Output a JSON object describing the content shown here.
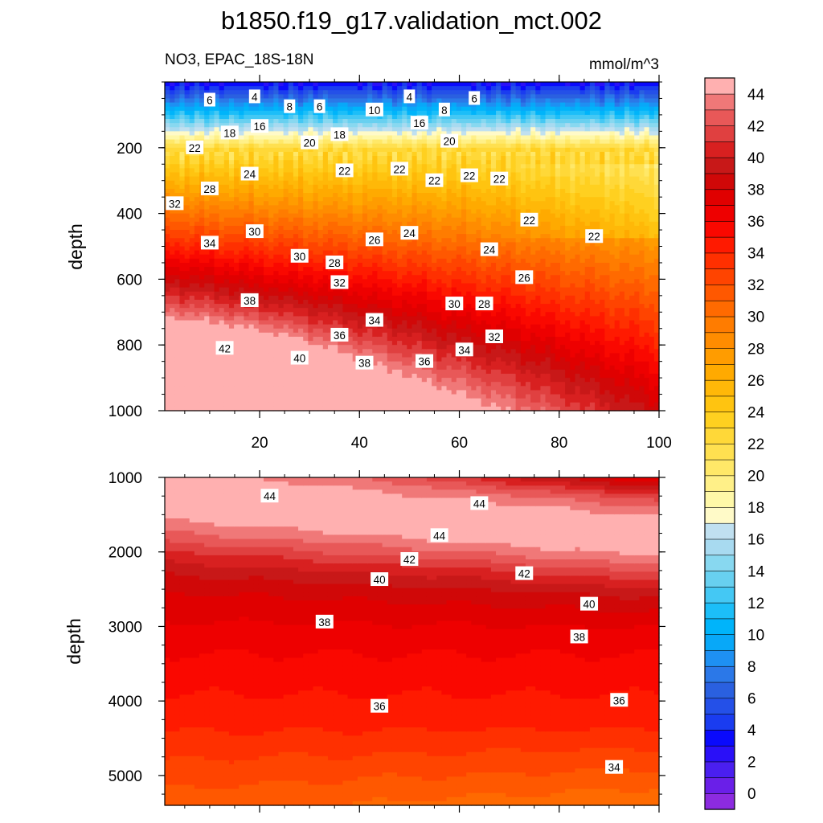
{
  "chart_data": {
    "title": "b1850.f19_g17.validation_mct.002",
    "variable_label": "NO3, EPAC_18S-18N",
    "units": "mmol/m^3",
    "type": "heatmap",
    "colorbar": {
      "levels": [
        0,
        2,
        4,
        6,
        8,
        10,
        12,
        14,
        16,
        18,
        20,
        22,
        24,
        26,
        28,
        30,
        32,
        34,
        36,
        38,
        40,
        42,
        44
      ],
      "tick_labels": [
        "0",
        "2",
        "4",
        "6",
        "8",
        "10",
        "12",
        "14",
        "16",
        "18",
        "20",
        "22",
        "24",
        "26",
        "28",
        "30",
        "32",
        "34",
        "36",
        "38",
        "40",
        "42",
        "44"
      ],
      "colors": [
        "#8c2be0",
        "#6a1fe8",
        "#4a1ff0",
        "#2a10f8",
        "#0a0afc",
        "#1a3cf0",
        "#2450e8",
        "#2a60e0",
        "#2b78e8",
        "#1e90f2",
        "#08a8f8",
        "#00b4fa",
        "#1cbef8",
        "#44c8f4",
        "#68d0f0",
        "#88d8f0",
        "#a8daf0",
        "#c0e0f0",
        "#fffac8",
        "#fff8a8",
        "#fff088",
        "#ffe868",
        "#ffe050",
        "#ffd838",
        "#ffd020",
        "#ffc410",
        "#ffb808",
        "#ffaa00",
        "#ff9c00",
        "#ff8c00",
        "#ff7c00",
        "#ff6a00",
        "#ff5800",
        "#ff4400",
        "#ff3000",
        "#ff1a00",
        "#fa0800",
        "#ee0000",
        "#e00000",
        "#d00808",
        "#c81818",
        "#d82020",
        "#e04040",
        "#e85858",
        "#f07878",
        "#ffb0b0"
      ],
      "fill_tops": [
        0,
        1,
        2,
        3,
        4,
        5,
        6,
        7,
        8,
        9,
        10,
        11,
        12,
        13,
        14,
        15,
        16,
        17,
        18,
        19,
        20,
        21,
        22,
        23,
        24,
        25,
        26,
        27,
        28,
        29,
        30,
        31,
        32,
        33,
        34,
        35,
        36,
        37,
        38,
        39,
        40,
        41,
        42,
        43,
        44,
        46
      ]
    },
    "panels": [
      {
        "name": "upper",
        "xlim": [
          1,
          100
        ],
        "ylim": [
          1000,
          0
        ],
        "ylabel": "depth",
        "xticks": [
          20,
          40,
          60,
          80,
          100
        ],
        "xtick_labels": [
          "20",
          "40",
          "60",
          "80",
          "100"
        ],
        "yticks": [
          200,
          400,
          600,
          800,
          1000
        ],
        "ytick_labels": [
          "200",
          "400",
          "600",
          "800",
          "1000"
        ],
        "contour_labels": [
          {
            "text": "6",
            "x": 10,
            "y": 55
          },
          {
            "text": "4",
            "x": 19,
            "y": 45
          },
          {
            "text": "8",
            "x": 26,
            "y": 75
          },
          {
            "text": "6",
            "x": 32,
            "y": 75
          },
          {
            "text": "10",
            "x": 43,
            "y": 85
          },
          {
            "text": "4",
            "x": 50,
            "y": 45
          },
          {
            "text": "8",
            "x": 57,
            "y": 85
          },
          {
            "text": "6",
            "x": 63,
            "y": 50
          },
          {
            "text": "18",
            "x": 14,
            "y": 155
          },
          {
            "text": "16",
            "x": 20,
            "y": 135
          },
          {
            "text": "20",
            "x": 30,
            "y": 185
          },
          {
            "text": "18",
            "x": 36,
            "y": 160
          },
          {
            "text": "16",
            "x": 52,
            "y": 125
          },
          {
            "text": "20",
            "x": 58,
            "y": 180
          },
          {
            "text": "22",
            "x": 7,
            "y": 200
          },
          {
            "text": "22",
            "x": 37,
            "y": 270
          },
          {
            "text": "22",
            "x": 48,
            "y": 265
          },
          {
            "text": "22",
            "x": 55,
            "y": 300
          },
          {
            "text": "22",
            "x": 62,
            "y": 285
          },
          {
            "text": "22",
            "x": 68,
            "y": 295
          },
          {
            "text": "24",
            "x": 18,
            "y": 280
          },
          {
            "text": "28",
            "x": 10,
            "y": 325
          },
          {
            "text": "32",
            "x": 3,
            "y": 370
          },
          {
            "text": "22",
            "x": 74,
            "y": 420
          },
          {
            "text": "22",
            "x": 87,
            "y": 470
          },
          {
            "text": "24",
            "x": 50,
            "y": 460
          },
          {
            "text": "26",
            "x": 43,
            "y": 480
          },
          {
            "text": "30",
            "x": 19,
            "y": 455
          },
          {
            "text": "34",
            "x": 10,
            "y": 490
          },
          {
            "text": "24",
            "x": 66,
            "y": 510
          },
          {
            "text": "30",
            "x": 28,
            "y": 530
          },
          {
            "text": "28",
            "x": 35,
            "y": 550
          },
          {
            "text": "26",
            "x": 73,
            "y": 595
          },
          {
            "text": "32",
            "x": 36,
            "y": 610
          },
          {
            "text": "38",
            "x": 18,
            "y": 665
          },
          {
            "text": "30",
            "x": 59,
            "y": 675
          },
          {
            "text": "28",
            "x": 65,
            "y": 675
          },
          {
            "text": "34",
            "x": 43,
            "y": 725
          },
          {
            "text": "36",
            "x": 36,
            "y": 770
          },
          {
            "text": "32",
            "x": 67,
            "y": 775
          },
          {
            "text": "42",
            "x": 13,
            "y": 810
          },
          {
            "text": "40",
            "x": 28,
            "y": 840
          },
          {
            "text": "38",
            "x": 41,
            "y": 855
          },
          {
            "text": "36",
            "x": 53,
            "y": 850
          },
          {
            "text": "34",
            "x": 61,
            "y": 815
          }
        ]
      },
      {
        "name": "lower",
        "xlim": [
          1,
          100
        ],
        "ylim": [
          5400,
          1000
        ],
        "ylabel": "depth",
        "xticks": [
          20,
          40,
          60,
          80,
          100
        ],
        "yticks": [
          1000,
          2000,
          3000,
          4000,
          5000
        ],
        "ytick_labels": [
          "1000",
          "2000",
          "3000",
          "4000",
          "5000"
        ],
        "contour_labels": [
          {
            "text": "44",
            "x": 22,
            "y": 1250
          },
          {
            "text": "44",
            "x": 64,
            "y": 1350
          },
          {
            "text": "44",
            "x": 56,
            "y": 1780
          },
          {
            "text": "42",
            "x": 50,
            "y": 2100
          },
          {
            "text": "42",
            "x": 73,
            "y": 2290
          },
          {
            "text": "40",
            "x": 44,
            "y": 2370
          },
          {
            "text": "40",
            "x": 86,
            "y": 2700
          },
          {
            "text": "38",
            "x": 33,
            "y": 2940
          },
          {
            "text": "38",
            "x": 84,
            "y": 3140
          },
          {
            "text": "36",
            "x": 44,
            "y": 4070
          },
          {
            "text": "36",
            "x": 92,
            "y": 3990
          },
          {
            "text": "34",
            "x": 91,
            "y": 4890
          }
        ]
      }
    ]
  }
}
